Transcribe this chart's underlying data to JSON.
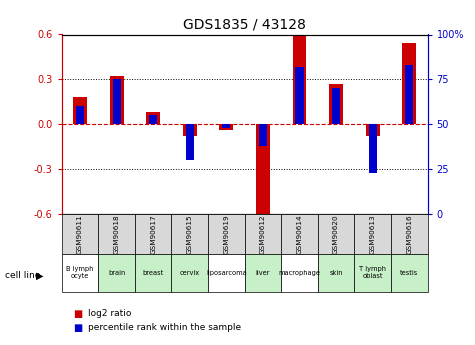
{
  "title": "GDS1835 / 43128",
  "gsm_labels": [
    "GSM90611",
    "GSM90618",
    "GSM90617",
    "GSM90615",
    "GSM90619",
    "GSM90612",
    "GSM90614",
    "GSM90620",
    "GSM90613",
    "GSM90616"
  ],
  "cell_labels": [
    "B lymph\nocyte",
    "brain",
    "breast",
    "cervix",
    "liposarcoma",
    "liver",
    "macrophage",
    "skin",
    "T lymph\noblast",
    "testis"
  ],
  "cell_bg": [
    "white",
    "lightgreen",
    "lightgreen",
    "lightgreen",
    "white",
    "lightgreen",
    "white",
    "lightgreen",
    "lightgreen",
    "lightgreen"
  ],
  "log2_ratio": [
    0.18,
    0.32,
    0.08,
    -0.08,
    -0.04,
    -0.62,
    0.59,
    0.27,
    -0.08,
    0.54
  ],
  "percentile_rank": [
    60,
    75,
    55,
    30,
    48,
    38,
    82,
    70,
    23,
    83
  ],
  "ylim_left": [
    -0.6,
    0.6
  ],
  "ylim_right": [
    0,
    100
  ],
  "yticks_left": [
    -0.6,
    -0.3,
    0.0,
    0.3,
    0.6
  ],
  "yticks_right": [
    0,
    25,
    50,
    75,
    100
  ],
  "red_color": "#CC0000",
  "blue_color": "#0000CC",
  "dotted_lines": [
    -0.3,
    0.3
  ],
  "legend_red": "log2 ratio",
  "legend_blue": "percentile rank within the sample",
  "cell_colors_map": {
    "white": "#ffffff",
    "lightgreen": "#c8f0c8"
  }
}
